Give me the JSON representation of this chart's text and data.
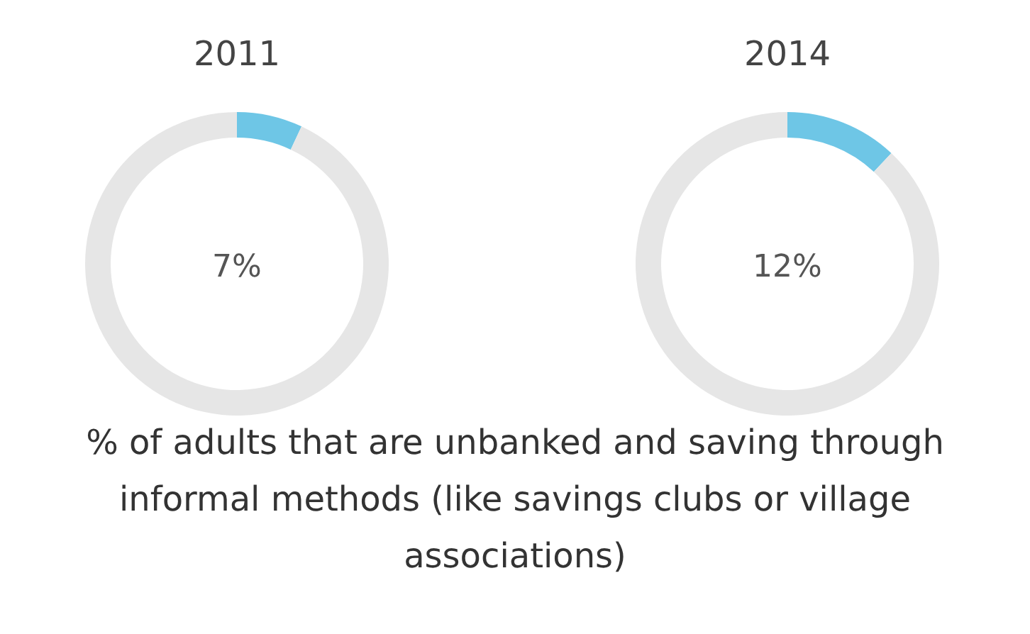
{
  "chart_data": [
    {
      "type": "donut",
      "title": "2011",
      "categories": [
        null,
        null
      ],
      "values": [
        7,
        93
      ],
      "colors": [
        "#6ec6e6",
        "#e6e6e6"
      ],
      "annotations": [
        "7%"
      ]
    },
    {
      "type": "donut",
      "title": "2014",
      "categories": [
        null,
        null
      ],
      "values": [
        12,
        88
      ],
      "colors": [
        "#6ec6e6",
        "#e6e6e6"
      ],
      "annotations": [
        "12%"
      ]
    },
    {
      "type": "other",
      "annotations": [
        "% of adults that are unbanked and saving through informal methods (like savings clubs or village associations)"
      ]
    }
  ]
}
